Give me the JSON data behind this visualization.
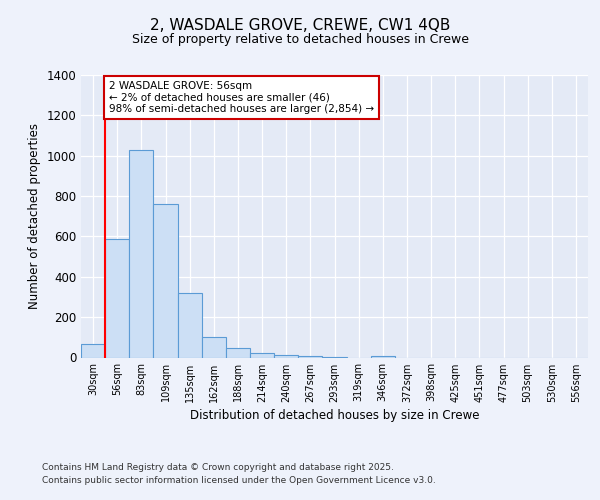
{
  "title1": "2, WASDALE GROVE, CREWE, CW1 4QB",
  "title2": "Size of property relative to detached houses in Crewe",
  "xlabel": "Distribution of detached houses by size in Crewe",
  "ylabel": "Number of detached properties",
  "categories": [
    "30sqm",
    "56sqm",
    "83sqm",
    "109sqm",
    "135sqm",
    "162sqm",
    "188sqm",
    "214sqm",
    "240sqm",
    "267sqm",
    "293sqm",
    "319sqm",
    "346sqm",
    "372sqm",
    "398sqm",
    "425sqm",
    "451sqm",
    "477sqm",
    "503sqm",
    "530sqm",
    "556sqm"
  ],
  "values": [
    65,
    585,
    1030,
    760,
    320,
    100,
    45,
    20,
    10,
    5,
    2,
    0,
    5,
    0,
    0,
    0,
    0,
    0,
    0,
    0,
    0
  ],
  "bar_color": "#ccdff5",
  "bar_edge_color": "#5b9bd5",
  "red_line_index": 1,
  "annotation_text": "2 WASDALE GROVE: 56sqm\n← 2% of detached houses are smaller (46)\n98% of semi-detached houses are larger (2,854) →",
  "annotation_box_color": "#ffffff",
  "annotation_box_edge": "#cc0000",
  "ylim": [
    0,
    1400
  ],
  "yticks": [
    0,
    200,
    400,
    600,
    800,
    1000,
    1200,
    1400
  ],
  "footer1": "Contains HM Land Registry data © Crown copyright and database right 2025.",
  "footer2": "Contains public sector information licensed under the Open Government Licence v3.0.",
  "bg_color": "#eef2fb",
  "plot_bg_color": "#e4eaf6"
}
